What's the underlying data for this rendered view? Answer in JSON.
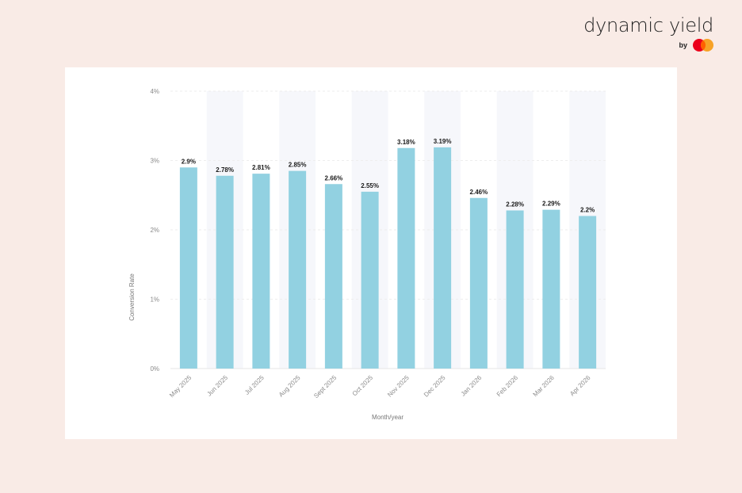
{
  "brand": {
    "name": "dynamic yield",
    "by": "by"
  },
  "colors": {
    "bar": "#92d1e1",
    "band": "#f6f7fb",
    "background": "#f9ebe6",
    "mc_red": "#eb001b",
    "mc_orange": "#f79e1b"
  },
  "chart_data": {
    "type": "bar",
    "categories": [
      "May 2025",
      "Jun 2025",
      "Jul 2025",
      "Aug 2025",
      "Sept 2025",
      "Oct 2025",
      "Nov 2025",
      "Dec 2025",
      "Jan 2026",
      "Feb 2026",
      "Mar 2026",
      "Apr 2026"
    ],
    "values": [
      2.9,
      2.78,
      2.81,
      2.85,
      2.66,
      2.55,
      3.18,
      3.19,
      2.46,
      2.28,
      2.29,
      2.2
    ],
    "value_labels": [
      "2.9%",
      "2.78%",
      "2.81%",
      "2.85%",
      "2.66%",
      "2.55%",
      "3.18%",
      "3.19%",
      "2.46%",
      "2.28%",
      "2.29%",
      "2.2%"
    ],
    "xlabel": "Month/year",
    "ylabel": "Conversion Rate",
    "ylim": [
      0,
      4
    ],
    "yticks": [
      0,
      1,
      2,
      3,
      4
    ],
    "ytick_labels": [
      "0%",
      "1%",
      "2%",
      "3%",
      "4%"
    ],
    "grid": true,
    "alternating_bands": true
  }
}
